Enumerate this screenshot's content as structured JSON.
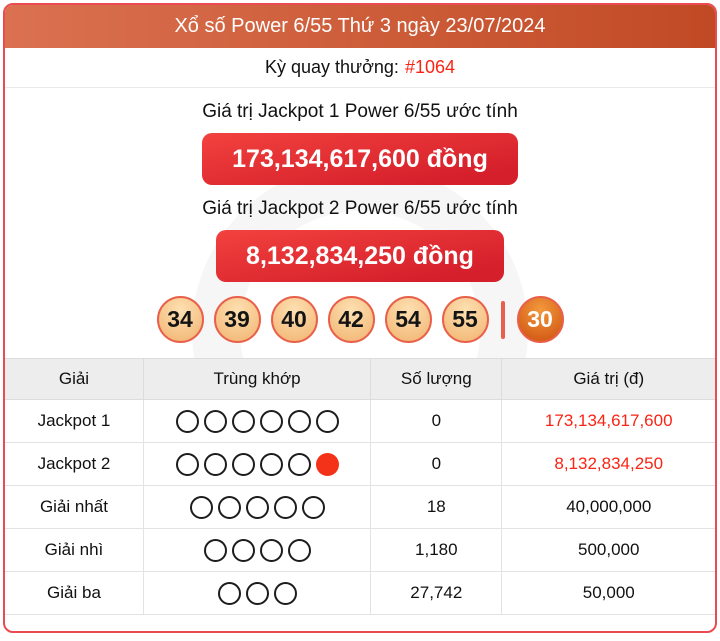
{
  "header": {
    "title": "Xổ số Power 6/55 Thứ 3 ngày 23/07/2024"
  },
  "draw": {
    "label": "Kỳ quay thưởng:",
    "id": "#1064"
  },
  "jackpot1": {
    "label": "Giá trị Jackpot 1 Power 6/55 ước tính",
    "value": "173,134,617,600 đồng"
  },
  "jackpot2": {
    "label": "Giá trị Jackpot 2 Power 6/55 ước tính",
    "value": "8,132,834,250 đồng"
  },
  "balls": {
    "main": [
      "34",
      "39",
      "40",
      "42",
      "54",
      "55"
    ],
    "special": "30"
  },
  "table": {
    "headers": [
      "Giải",
      "Trùng khớp",
      "Số lượng",
      "Giá trị (đ)"
    ],
    "rows": [
      {
        "prize": "Jackpot 1",
        "circles_open": 6,
        "circles_filled": 0,
        "count": "0",
        "value": "173,134,617,600",
        "value_red": true
      },
      {
        "prize": "Jackpot 2",
        "circles_open": 5,
        "circles_filled": 1,
        "count": "0",
        "value": "8,132,834,250",
        "value_red": true
      },
      {
        "prize": "Giải nhất",
        "circles_open": 5,
        "circles_filled": 0,
        "count": "18",
        "value": "40,000,000",
        "value_red": false
      },
      {
        "prize": "Giải nhì",
        "circles_open": 4,
        "circles_filled": 0,
        "count": "1,180",
        "value": "500,000",
        "value_red": false
      },
      {
        "prize": "Giải ba",
        "circles_open": 3,
        "circles_filled": 0,
        "count": "27,742",
        "value": "50,000",
        "value_red": false
      }
    ]
  },
  "colors": {
    "card_border": "#ea4b52",
    "header_grad_left": "#da7150",
    "header_grad_right": "#c14a25",
    "button_grad_top": "#f2423e",
    "button_grad_bottom": "#d51f2b",
    "red_text": "#fb2414",
    "ball_border": "#e9604a",
    "ball_fill_top": "#fde0b2",
    "ball_fill_bottom": "#f4bd7e",
    "special_fill_top": "#f29a3c",
    "special_fill_bottom": "#d45c17",
    "table_header_bg": "#ededed",
    "circle_filled": "#f43119"
  }
}
